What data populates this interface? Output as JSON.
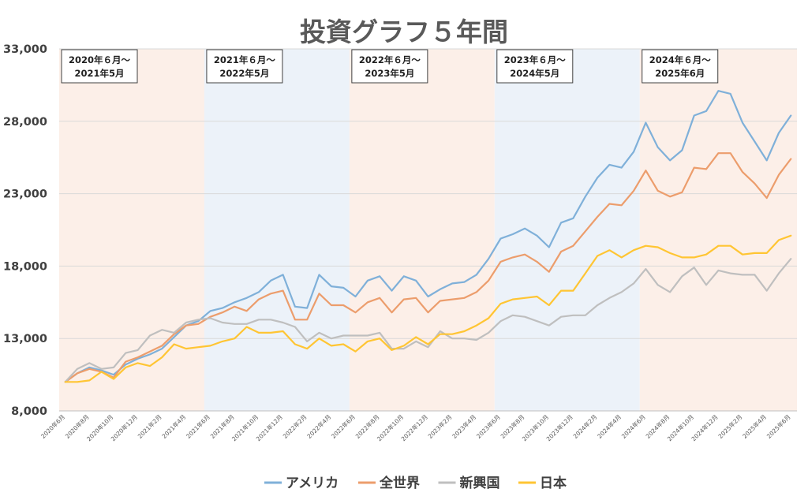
{
  "chart_data": {
    "type": "line",
    "title": "投資グラフ５年間",
    "y_ticks": [
      "8,000",
      "13,000",
      "18,000",
      "23,000",
      "28,000",
      "33,000"
    ],
    "ylim": [
      8000,
      33000
    ],
    "grid": true,
    "legend_position": "bottom",
    "x": [
      "2020年6月",
      "2020年7月",
      "2020年8月",
      "2020年9月",
      "2020年10月",
      "2020年11月",
      "2020年12月",
      "2021年1月",
      "2021年2月",
      "2021年3月",
      "2021年4月",
      "2021年5月",
      "2021年6月",
      "2021年7月",
      "2021年8月",
      "2021年9月",
      "2021年10月",
      "2021年11月",
      "2021年12月",
      "2022年1月",
      "2022年2月",
      "2022年3月",
      "2022年4月",
      "2022年5月",
      "2022年6月",
      "2022年7月",
      "2022年8月",
      "2022年9月",
      "2022年10月",
      "2022年11月",
      "2022年12月",
      "2023年1月",
      "2023年2月",
      "2023年3月",
      "2023年4月",
      "2023年5月",
      "2023年6月",
      "2023年7月",
      "2023年8月",
      "2023年9月",
      "2023年10月",
      "2023年11月",
      "2023年12月",
      "2024年1月",
      "2024年2月",
      "2024年3月",
      "2024年4月",
      "2024年5月",
      "2024年6月",
      "2024年7月",
      "2024年8月",
      "2024年9月",
      "2024年10月",
      "2024年11月",
      "2024年12月",
      "2025年1月",
      "2025年2月",
      "2025年3月",
      "2025年4月",
      "2025年5月",
      "2025年6月"
    ],
    "x_tick_labels": [
      "2020年6月",
      "2020年8月",
      "2020年10月",
      "2020年12月",
      "2021年2月",
      "2021年4月",
      "2021年6月",
      "2021年8月",
      "2021年10月",
      "2021年12月",
      "2022年2月",
      "2022年4月",
      "2022年6月",
      "2022年8月",
      "2022年10月",
      "2022年12月",
      "2023年2月",
      "2023年4月",
      "2023年6月",
      "2023年8月",
      "2023年10月",
      "2023年12月",
      "2024年2月",
      "2024年4月",
      "2024年6月",
      "2024年8月",
      "2024年10月",
      "2024年12月",
      "2025年2月",
      "2025年4月",
      "2025年6月"
    ],
    "series": [
      {
        "name": "アメリカ",
        "color": "#7fb0d9",
        "values": [
          10000,
          10600,
          11000,
          10800,
          10500,
          11200,
          11600,
          11900,
          12300,
          13100,
          13900,
          14200,
          14900,
          15100,
          15500,
          15800,
          16200,
          17000,
          17400,
          15200,
          15100,
          17400,
          16600,
          16500,
          15900,
          17000,
          17300,
          16300,
          17300,
          17000,
          15900,
          16400,
          16800,
          16900,
          17400,
          18500,
          19900,
          20200,
          20600,
          20100,
          19300,
          21000,
          21300,
          22800,
          24100,
          25000,
          24800,
          25900,
          27900,
          26200,
          25300,
          26000,
          28400,
          28700,
          30100,
          29900,
          27900,
          26600,
          25300,
          27200,
          28400
        ]
      },
      {
        "name": "全世界",
        "color": "#ec9d6c",
        "values": [
          10000,
          10600,
          10900,
          10700,
          10300,
          11400,
          11700,
          12100,
          12500,
          13300,
          13900,
          14000,
          14500,
          14800,
          15200,
          14900,
          15700,
          16100,
          16300,
          14300,
          14300,
          16100,
          15300,
          15300,
          14800,
          15500,
          15800,
          14800,
          15700,
          15800,
          14800,
          15600,
          15700,
          15800,
          16200,
          17000,
          18300,
          18600,
          18800,
          18300,
          17600,
          19000,
          19400,
          20400,
          21400,
          22300,
          22200,
          23200,
          24600,
          23200,
          22800,
          23100,
          24800,
          24700,
          25800,
          25800,
          24500,
          23700,
          22700,
          24300,
          25400
        ]
      },
      {
        "name": "新興国",
        "color": "#bfbfbf",
        "values": [
          10000,
          10900,
          11300,
          10900,
          11000,
          12000,
          12200,
          13200,
          13600,
          13400,
          14100,
          14300,
          14400,
          14100,
          14000,
          14000,
          14300,
          14300,
          14100,
          13800,
          12800,
          13400,
          13000,
          13200,
          13200,
          13200,
          13400,
          12300,
          12300,
          12800,
          12400,
          13500,
          13000,
          13000,
          12900,
          13400,
          14200,
          14600,
          14500,
          14200,
          13900,
          14500,
          14600,
          14600,
          15300,
          15800,
          16200,
          16800,
          17800,
          16700,
          16200,
          17300,
          17900,
          16700,
          17700,
          17500,
          17400,
          17400,
          16300,
          17500,
          18500
        ]
      },
      {
        "name": "日本",
        "color": "#ffc533",
        "values": [
          10000,
          10000,
          10100,
          10700,
          10200,
          11000,
          11300,
          11100,
          11700,
          12600,
          12300,
          12400,
          12500,
          12800,
          13000,
          13800,
          13400,
          13400,
          13500,
          12600,
          12300,
          13000,
          12500,
          12600,
          12100,
          12800,
          13000,
          12200,
          12500,
          13100,
          12600,
          13300,
          13300,
          13500,
          13900,
          14400,
          15400,
          15700,
          15800,
          15900,
          15300,
          16300,
          16300,
          17500,
          18700,
          19100,
          18600,
          19100,
          19400,
          19300,
          18900,
          18600,
          18600,
          18800,
          19400,
          19400,
          18800,
          18900,
          18900,
          19800,
          20100
        ]
      }
    ],
    "periods": [
      {
        "label_line1": "2020年６月～",
        "label_line2": "2021年5月",
        "shade": "#fcefe8",
        "start": 0,
        "end": 12
      },
      {
        "label_line1": "2021年６月～",
        "label_line2": "2022年5月",
        "shade": "#ecf2f9",
        "start": 12,
        "end": 24
      },
      {
        "label_line1": "2022年６月～",
        "label_line2": "2023年5月",
        "shade": "#fcefe8",
        "start": 24,
        "end": 36
      },
      {
        "label_line1": "2023年６月～",
        "label_line2": "2024年5月",
        "shade": "#ecf2f9",
        "start": 36,
        "end": 48
      },
      {
        "label_line1": "2024年６月～",
        "label_line2": "2025年6月",
        "shade": "#fcefe8",
        "start": 48,
        "end": 60
      }
    ]
  }
}
